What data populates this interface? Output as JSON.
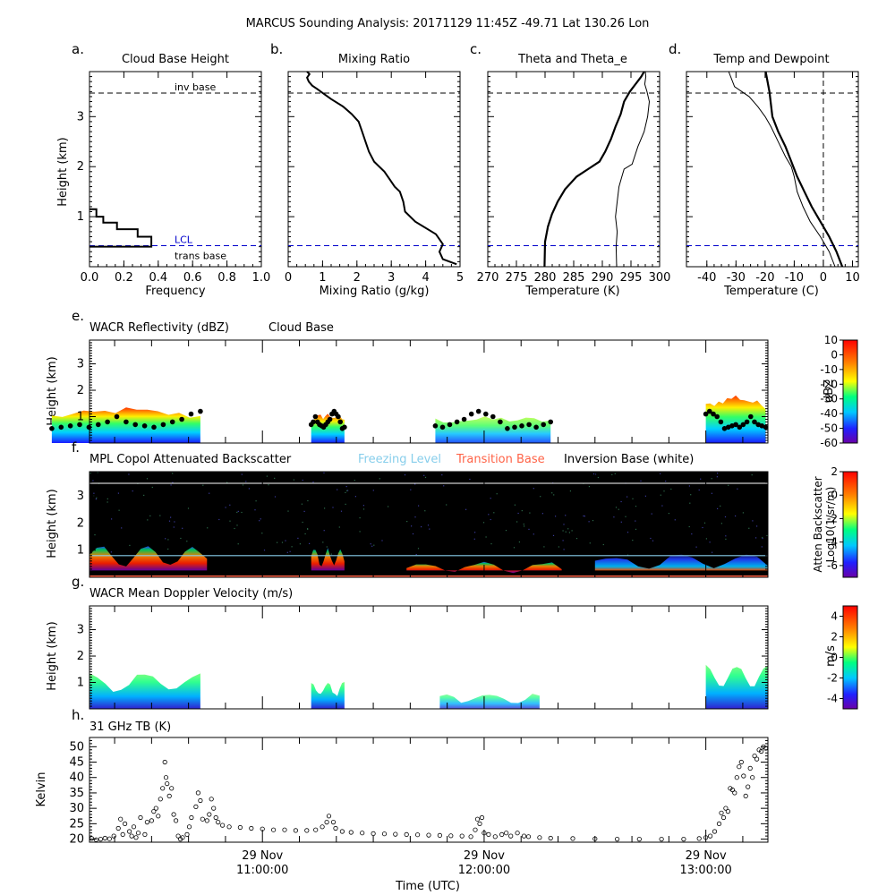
{
  "figure": {
    "title": "MARCUS Sounding Analysis: 20171129 11:45Z   -49.71 Lat  130.26 Lon"
  },
  "colors": {
    "lcl_line": "#0000cc",
    "freezing_level": "#87ceeb",
    "transition_base": "#ff6347",
    "inversion_base": "#ffffff",
    "axes": "#000000"
  },
  "chart_data": [
    {
      "id": "a",
      "type": "line",
      "panel_letter": "a.",
      "title": "Cloud Base Height",
      "xlabel": "Frequency",
      "ylabel": "Height (km)",
      "xlim": [
        0.0,
        1.0
      ],
      "ylim": [
        0,
        3.9
      ],
      "xticks": [
        "0.0",
        "0.2",
        "0.4",
        "0.6",
        "0.8",
        "1.0"
      ],
      "yticks": [
        "1",
        "2",
        "3"
      ],
      "series": [
        {
          "style": "step",
          "x": [
            0.0,
            0.04,
            0.04,
            0.08,
            0.08,
            0.16,
            0.16,
            0.28,
            0.28,
            0.36,
            0.36,
            0.0
          ],
          "y": [
            1.15,
            1.15,
            1.0,
            1.0,
            0.88,
            0.88,
            0.75,
            0.75,
            0.6,
            0.6,
            0.4,
            0.4
          ]
        }
      ],
      "hlines": [
        {
          "y": 3.47,
          "label": "inv base",
          "style": "dash",
          "color": "#000000"
        },
        {
          "y": 0.42,
          "label": "LCL",
          "style": "dash",
          "color": "#0000cc"
        },
        {
          "y": 0.1,
          "label": "trans base",
          "style": "none",
          "color": "#000000"
        }
      ]
    },
    {
      "id": "b",
      "type": "line",
      "panel_letter": "b.",
      "title": "Mixing Ratio",
      "xlabel": "Mixing Ratio (g/kg)",
      "ylabel": "",
      "xlim": [
        0,
        5
      ],
      "ylim": [
        0,
        3.9
      ],
      "xticks": [
        "0",
        "1",
        "2",
        "3",
        "4",
        "5"
      ],
      "series": [
        {
          "x": [
            4.9,
            4.5,
            4.4,
            4.5,
            4.4,
            4.3,
            3.7,
            3.4,
            3.35,
            3.25,
            3.1,
            2.95,
            2.8,
            2.5,
            2.35,
            2.25,
            2.15,
            2.05,
            1.85,
            1.6,
            1.25,
            1.05,
            0.85,
            0.7,
            0.6,
            0.55,
            0.62,
            0.55
          ],
          "y": [
            0.05,
            0.15,
            0.3,
            0.45,
            0.55,
            0.65,
            0.9,
            1.1,
            1.3,
            1.5,
            1.6,
            1.75,
            1.9,
            2.1,
            2.3,
            2.5,
            2.7,
            2.9,
            3.05,
            3.2,
            3.35,
            3.45,
            3.55,
            3.62,
            3.7,
            3.78,
            3.85,
            3.9
          ]
        }
      ],
      "hlines": [
        {
          "y": 3.47,
          "label": "",
          "style": "dash",
          "color": "#000000"
        },
        {
          "y": 0.42,
          "label": "",
          "style": "dash",
          "color": "#0000cc"
        }
      ]
    },
    {
      "id": "c",
      "type": "line",
      "panel_letter": "c.",
      "title": "Theta and Theta_e",
      "xlabel": "Temperature (K)",
      "ylabel": "",
      "xlim": [
        270,
        300
      ],
      "ylim": [
        0,
        3.9
      ],
      "xticks": [
        "270",
        "275",
        "280",
        "285",
        "290",
        "295",
        "300"
      ],
      "series": [
        {
          "name": "Theta",
          "width": 2.2,
          "x": [
            279.9,
            280.0,
            280.5,
            281.2,
            282.2,
            283.5,
            285.5,
            287.5,
            289.5,
            290.5,
            291.5,
            292.3,
            293.2,
            293.8,
            294.8,
            295.8,
            296.8,
            297.3
          ],
          "y": [
            0.0,
            0.5,
            0.8,
            1.05,
            1.3,
            1.55,
            1.8,
            1.95,
            2.1,
            2.3,
            2.55,
            2.8,
            3.05,
            3.3,
            3.5,
            3.65,
            3.8,
            3.9
          ]
        },
        {
          "name": "Theta_e",
          "width": 1.0,
          "x": [
            292.5,
            292.4,
            292.6,
            292.3,
            292.6,
            292.9,
            293.4,
            293.8,
            295.2,
            296.2,
            297.3,
            297.9,
            298.2,
            297.8,
            297.4,
            297.6,
            297.5
          ],
          "y": [
            0.0,
            0.4,
            0.7,
            1.0,
            1.3,
            1.6,
            1.8,
            1.95,
            2.05,
            2.4,
            2.7,
            3.0,
            3.3,
            3.5,
            3.65,
            3.8,
            3.9
          ]
        }
      ],
      "hlines": [
        {
          "y": 3.47,
          "label": "",
          "style": "dash",
          "color": "#000000"
        },
        {
          "y": 0.42,
          "label": "",
          "style": "dash",
          "color": "#0000cc"
        }
      ]
    },
    {
      "id": "d",
      "type": "line",
      "panel_letter": "d.",
      "title": "Temp and Dewpoint",
      "xlabel": "Temperature (C)",
      "ylabel": "",
      "xlim": [
        -47,
        12
      ],
      "ylim": [
        0,
        3.9
      ],
      "xticks": [
        "-40",
        "-30",
        "-20",
        "-10",
        "0",
        "10"
      ],
      "xtick_values": [
        -40,
        -30,
        -20,
        -10,
        0,
        10
      ],
      "series": [
        {
          "name": "Temperature",
          "width": 2.2,
          "x": [
            6.5,
            4.5,
            2.0,
            -1.0,
            -4.0,
            -6.5,
            -9.0,
            -11.0,
            -13.0,
            -15.5,
            -17.5,
            -18.5,
            -19.8
          ],
          "y": [
            0.0,
            0.3,
            0.6,
            0.9,
            1.2,
            1.5,
            1.8,
            2.1,
            2.4,
            2.7,
            3.0,
            3.5,
            3.9
          ]
        },
        {
          "name": "Dewpoint",
          "width": 1.0,
          "x": [
            4.0,
            2.0,
            -1.0,
            -4.5,
            -7.0,
            -9.0,
            -10.0,
            -11.0,
            -13.0,
            -15.5,
            -18.0,
            -20.0,
            -22.5,
            -25.5,
            -30.5,
            -32.5
          ],
          "y": [
            0.0,
            0.3,
            0.6,
            0.9,
            1.2,
            1.5,
            1.8,
            2.0,
            2.2,
            2.5,
            2.8,
            3.0,
            3.2,
            3.4,
            3.6,
            3.9
          ]
        }
      ],
      "hlines": [
        {
          "y": 3.47,
          "label": "",
          "style": "dash",
          "color": "#000000"
        },
        {
          "y": 0.42,
          "label": "",
          "style": "dash",
          "color": "#0000cc"
        }
      ],
      "vlines": [
        {
          "x": 0,
          "style": "dash",
          "color": "#000000"
        }
      ]
    },
    {
      "id": "e",
      "type": "heatmap",
      "panel_letter": "e.",
      "title": "WACR Reflectivity (dBZ)",
      "subtitle": "Cloud Base",
      "ylabel": "Height (km)",
      "ylim": [
        0,
        3.9
      ],
      "yticks": [
        "1",
        "2",
        "3"
      ],
      "colorbar": {
        "label": "dBZ",
        "range": [
          -60,
          10
        ],
        "ticks": [
          "10",
          "0",
          "-10",
          "-20",
          "-30",
          "-40",
          "-50",
          "-60"
        ]
      },
      "echo_regions_hours": [
        [
          10.05,
          10.72
        ],
        [
          11.22,
          11.37
        ],
        [
          11.78,
          12.3
        ],
        [
          13.0,
          13.27
        ]
      ],
      "cloud_base_km": [
        0.55,
        0.6,
        0.65,
        0.7,
        0.6,
        0.7,
        0.8,
        1.0,
        0.8,
        0.7,
        0.65,
        0.6,
        0.7,
        0.8,
        0.9,
        1.1,
        1.2,
        1.1,
        1.0,
        0.8
      ]
    },
    {
      "id": "f",
      "type": "heatmap",
      "panel_letter": "f.",
      "title": "MPL Copol Attenuated Backscatter",
      "legend": [
        {
          "label": "Freezing Level",
          "color": "#87ceeb"
        },
        {
          "label": "Transition Base",
          "color": "#ff6347"
        },
        {
          "label": "Inversion Base (white)",
          "color": "#000000"
        }
      ],
      "ylabel": "Height (km)",
      "ylim": [
        0,
        3.9
      ],
      "yticks": [
        "1",
        "2",
        "3"
      ],
      "freezing_level_km": 0.8,
      "inversion_base_km": 3.47,
      "transition_base_km": 0.0,
      "colorbar": {
        "label": "Atten Backscatter",
        "label2": "Log10(1/sr/m)",
        "range": [
          -7,
          2
        ],
        "ticks": [
          "2",
          "0",
          "-2",
          "-4",
          "-6"
        ]
      }
    },
    {
      "id": "g",
      "type": "heatmap",
      "panel_letter": "g.",
      "title": "WACR Mean Doppler Velocity (m/s)",
      "ylabel": "Height (km)",
      "ylim": [
        0,
        3.9
      ],
      "yticks": [
        "1",
        "2",
        "3"
      ],
      "colorbar": {
        "label": "m/s",
        "range": [
          -5,
          5
        ],
        "ticks": [
          "4",
          "2",
          "0",
          "-2",
          "-4"
        ]
      }
    },
    {
      "id": "h",
      "type": "scatter",
      "panel_letter": "h.",
      "title": "31 GHz TB (K)",
      "ylabel": "Kelvin",
      "xlabel": "Time (UTC)",
      "ylim": [
        19,
        53
      ],
      "yticks": [
        "20",
        "25",
        "30",
        "35",
        "40",
        "45",
        "50"
      ],
      "ytick_values": [
        20,
        25,
        30,
        35,
        40,
        45,
        50
      ],
      "time_axis": {
        "start_hour": 10.22,
        "end_hour": 13.28,
        "major_hours": [
          11.0,
          12.0,
          13.0
        ],
        "date_labels": [
          "29 Nov",
          "29 Nov",
          "29 Nov"
        ],
        "time_labels": [
          "11:00:00",
          "12:00:00",
          "13:00:00"
        ]
      },
      "points": [
        [
          10.23,
          20.2
        ],
        [
          10.25,
          19.8
        ],
        [
          10.27,
          20.0
        ],
        [
          10.29,
          20.3
        ],
        [
          10.31,
          20.1
        ],
        [
          10.33,
          21.0
        ],
        [
          10.35,
          23.5
        ],
        [
          10.36,
          26.5
        ],
        [
          10.37,
          21.5
        ],
        [
          10.38,
          25.0
        ],
        [
          10.4,
          22.5
        ],
        [
          10.41,
          21.0
        ],
        [
          10.42,
          24.0
        ],
        [
          10.43,
          20.5
        ],
        [
          10.44,
          22.0
        ],
        [
          10.45,
          27.0
        ],
        [
          10.47,
          21.5
        ],
        [
          10.48,
          25.5
        ],
        [
          10.5,
          26.0
        ],
        [
          10.51,
          29.0
        ],
        [
          10.52,
          30.0
        ],
        [
          10.53,
          27.5
        ],
        [
          10.54,
          33.0
        ],
        [
          10.55,
          36.5
        ],
        [
          10.56,
          45.0
        ],
        [
          10.565,
          40.0
        ],
        [
          10.57,
          38.0
        ],
        [
          10.58,
          34.0
        ],
        [
          10.59,
          36.5
        ],
        [
          10.6,
          28.0
        ],
        [
          10.61,
          26.0
        ],
        [
          10.62,
          21.0
        ],
        [
          10.63,
          20.0
        ],
        [
          10.64,
          20.5
        ],
        [
          10.66,
          21.5
        ],
        [
          10.67,
          24.0
        ],
        [
          10.68,
          27.0
        ],
        [
          10.7,
          30.5
        ],
        [
          10.71,
          35.0
        ],
        [
          10.72,
          32.5
        ],
        [
          10.73,
          26.5
        ],
        [
          10.75,
          26.0
        ],
        [
          10.76,
          28.0
        ],
        [
          10.77,
          33.0
        ],
        [
          10.78,
          30.0
        ],
        [
          10.79,
          27.0
        ],
        [
          10.8,
          25.5
        ],
        [
          10.82,
          24.5
        ],
        [
          10.85,
          24.0
        ],
        [
          10.9,
          23.8
        ],
        [
          10.95,
          23.5
        ],
        [
          11.0,
          23.3
        ],
        [
          11.05,
          23.0
        ],
        [
          11.1,
          23.0
        ],
        [
          11.15,
          22.8
        ],
        [
          11.2,
          22.8
        ],
        [
          11.24,
          23.0
        ],
        [
          11.27,
          24.0
        ],
        [
          11.29,
          25.5
        ],
        [
          11.3,
          27.5
        ],
        [
          11.32,
          25.5
        ],
        [
          11.33,
          23.5
        ],
        [
          11.36,
          22.5
        ],
        [
          11.4,
          22.2
        ],
        [
          11.45,
          22.0
        ],
        [
          11.5,
          21.8
        ],
        [
          11.55,
          21.7
        ],
        [
          11.6,
          21.6
        ],
        [
          11.65,
          21.5
        ],
        [
          11.7,
          21.4
        ],
        [
          11.75,
          21.3
        ],
        [
          11.8,
          21.2
        ],
        [
          11.85,
          21.1
        ],
        [
          11.9,
          21.0
        ],
        [
          11.94,
          20.8
        ],
        [
          11.96,
          23.0
        ],
        [
          11.97,
          26.5
        ],
        [
          11.98,
          25.0
        ],
        [
          11.99,
          27.0
        ],
        [
          12.0,
          22.0
        ],
        [
          12.02,
          21.5
        ],
        [
          12.05,
          20.8
        ],
        [
          12.08,
          21.5
        ],
        [
          12.1,
          22.0
        ],
        [
          12.12,
          21.0
        ],
        [
          12.15,
          22.0
        ],
        [
          12.18,
          21.0
        ],
        [
          12.2,
          20.8
        ],
        [
          12.25,
          20.5
        ],
        [
          12.3,
          20.3
        ],
        [
          12.4,
          20.2
        ],
        [
          12.5,
          20.1
        ],
        [
          12.6,
          20.0
        ],
        [
          12.7,
          20.0
        ],
        [
          12.8,
          20.0
        ],
        [
          12.9,
          20.0
        ],
        [
          12.97,
          20.2
        ],
        [
          13.0,
          20.5
        ],
        [
          13.02,
          21.0
        ],
        [
          13.04,
          22.5
        ],
        [
          13.06,
          25.0
        ],
        [
          13.07,
          28.5
        ],
        [
          13.08,
          27.0
        ],
        [
          13.09,
          30.0
        ],
        [
          13.1,
          29.0
        ],
        [
          13.11,
          36.5
        ],
        [
          13.12,
          36.0
        ],
        [
          13.13,
          35.0
        ],
        [
          13.14,
          40.0
        ],
        [
          13.15,
          43.5
        ],
        [
          13.16,
          45.0
        ],
        [
          13.17,
          40.5
        ],
        [
          13.18,
          34.0
        ],
        [
          13.19,
          37.0
        ],
        [
          13.2,
          43.0
        ],
        [
          13.21,
          40.0
        ],
        [
          13.22,
          47.0
        ],
        [
          13.23,
          46.0
        ],
        [
          13.24,
          49.0
        ],
        [
          13.25,
          48.5
        ],
        [
          13.26,
          50.0
        ],
        [
          13.27,
          49.5
        ]
      ]
    }
  ]
}
